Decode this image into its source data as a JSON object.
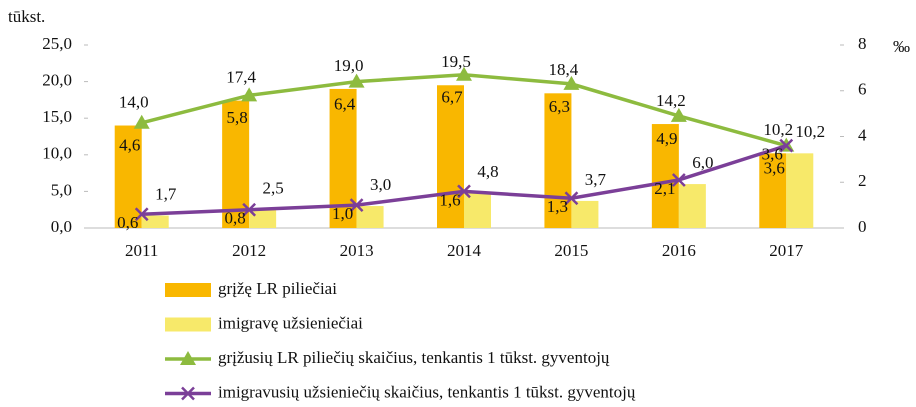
{
  "chart_data": {
    "type": "bar_line",
    "y_label": "tūkst.",
    "y2_label": "‰",
    "categories": [
      "2011",
      "2012",
      "2013",
      "2014",
      "2015",
      "2016",
      "2017"
    ],
    "ylim": [
      0,
      25
    ],
    "yticks": [
      {
        "value": 0,
        "label": "0,0"
      },
      {
        "value": 5,
        "label": "5,0"
      },
      {
        "value": 10,
        "label": "10,0"
      },
      {
        "value": 15,
        "label": "15,0"
      },
      {
        "value": 20,
        "label": "20,0"
      },
      {
        "value": 25,
        "label": "25,0"
      }
    ],
    "y2lim": [
      0,
      8
    ],
    "y2ticks": [
      0,
      2,
      4,
      6,
      8
    ],
    "series": [
      {
        "name": "grįžę LR piliečiai",
        "type": "bar",
        "color": "#f9b700",
        "values": [
          14.0,
          17.4,
          19.0,
          19.5,
          18.4,
          14.2,
          10.2
        ],
        "value_labels": [
          "14,0",
          "17,4",
          "19,0",
          "19,5",
          "18,4",
          "14,2",
          "10,2"
        ]
      },
      {
        "name": "imigravę užsieniečiai",
        "type": "bar",
        "color": "#f7e96a",
        "values": [
          1.7,
          2.5,
          3.0,
          4.8,
          3.7,
          6.0,
          10.2
        ],
        "value_labels": [
          "1,7",
          "2,5",
          "3,0",
          "4,8",
          "3,7",
          "6,0",
          "10,2"
        ]
      },
      {
        "name": "grįžusių LR piliečių skaičius, tenkantis 1 tūkst. gyventojų",
        "type": "line",
        "axis": "y2",
        "marker": "triangle",
        "color": "#8dbb3f",
        "values": [
          4.6,
          5.8,
          6.4,
          6.7,
          6.3,
          4.9,
          3.6
        ],
        "value_labels": [
          "4,6",
          "5,8",
          "6,4",
          "6,7",
          "6,3",
          "4,9",
          "3,6"
        ]
      },
      {
        "name": "imigravusių užsieniečių skaičius, tenkantis 1 tūkst. gyventojų",
        "type": "line",
        "axis": "y2",
        "marker": "x",
        "color": "#7b3f98",
        "values": [
          0.6,
          0.8,
          1.0,
          1.6,
          1.3,
          2.1,
          3.6
        ],
        "value_labels": [
          "0,6",
          "0,8",
          "1,0",
          "1,6",
          "1,3",
          "2,1",
          "3,6"
        ]
      }
    ]
  }
}
